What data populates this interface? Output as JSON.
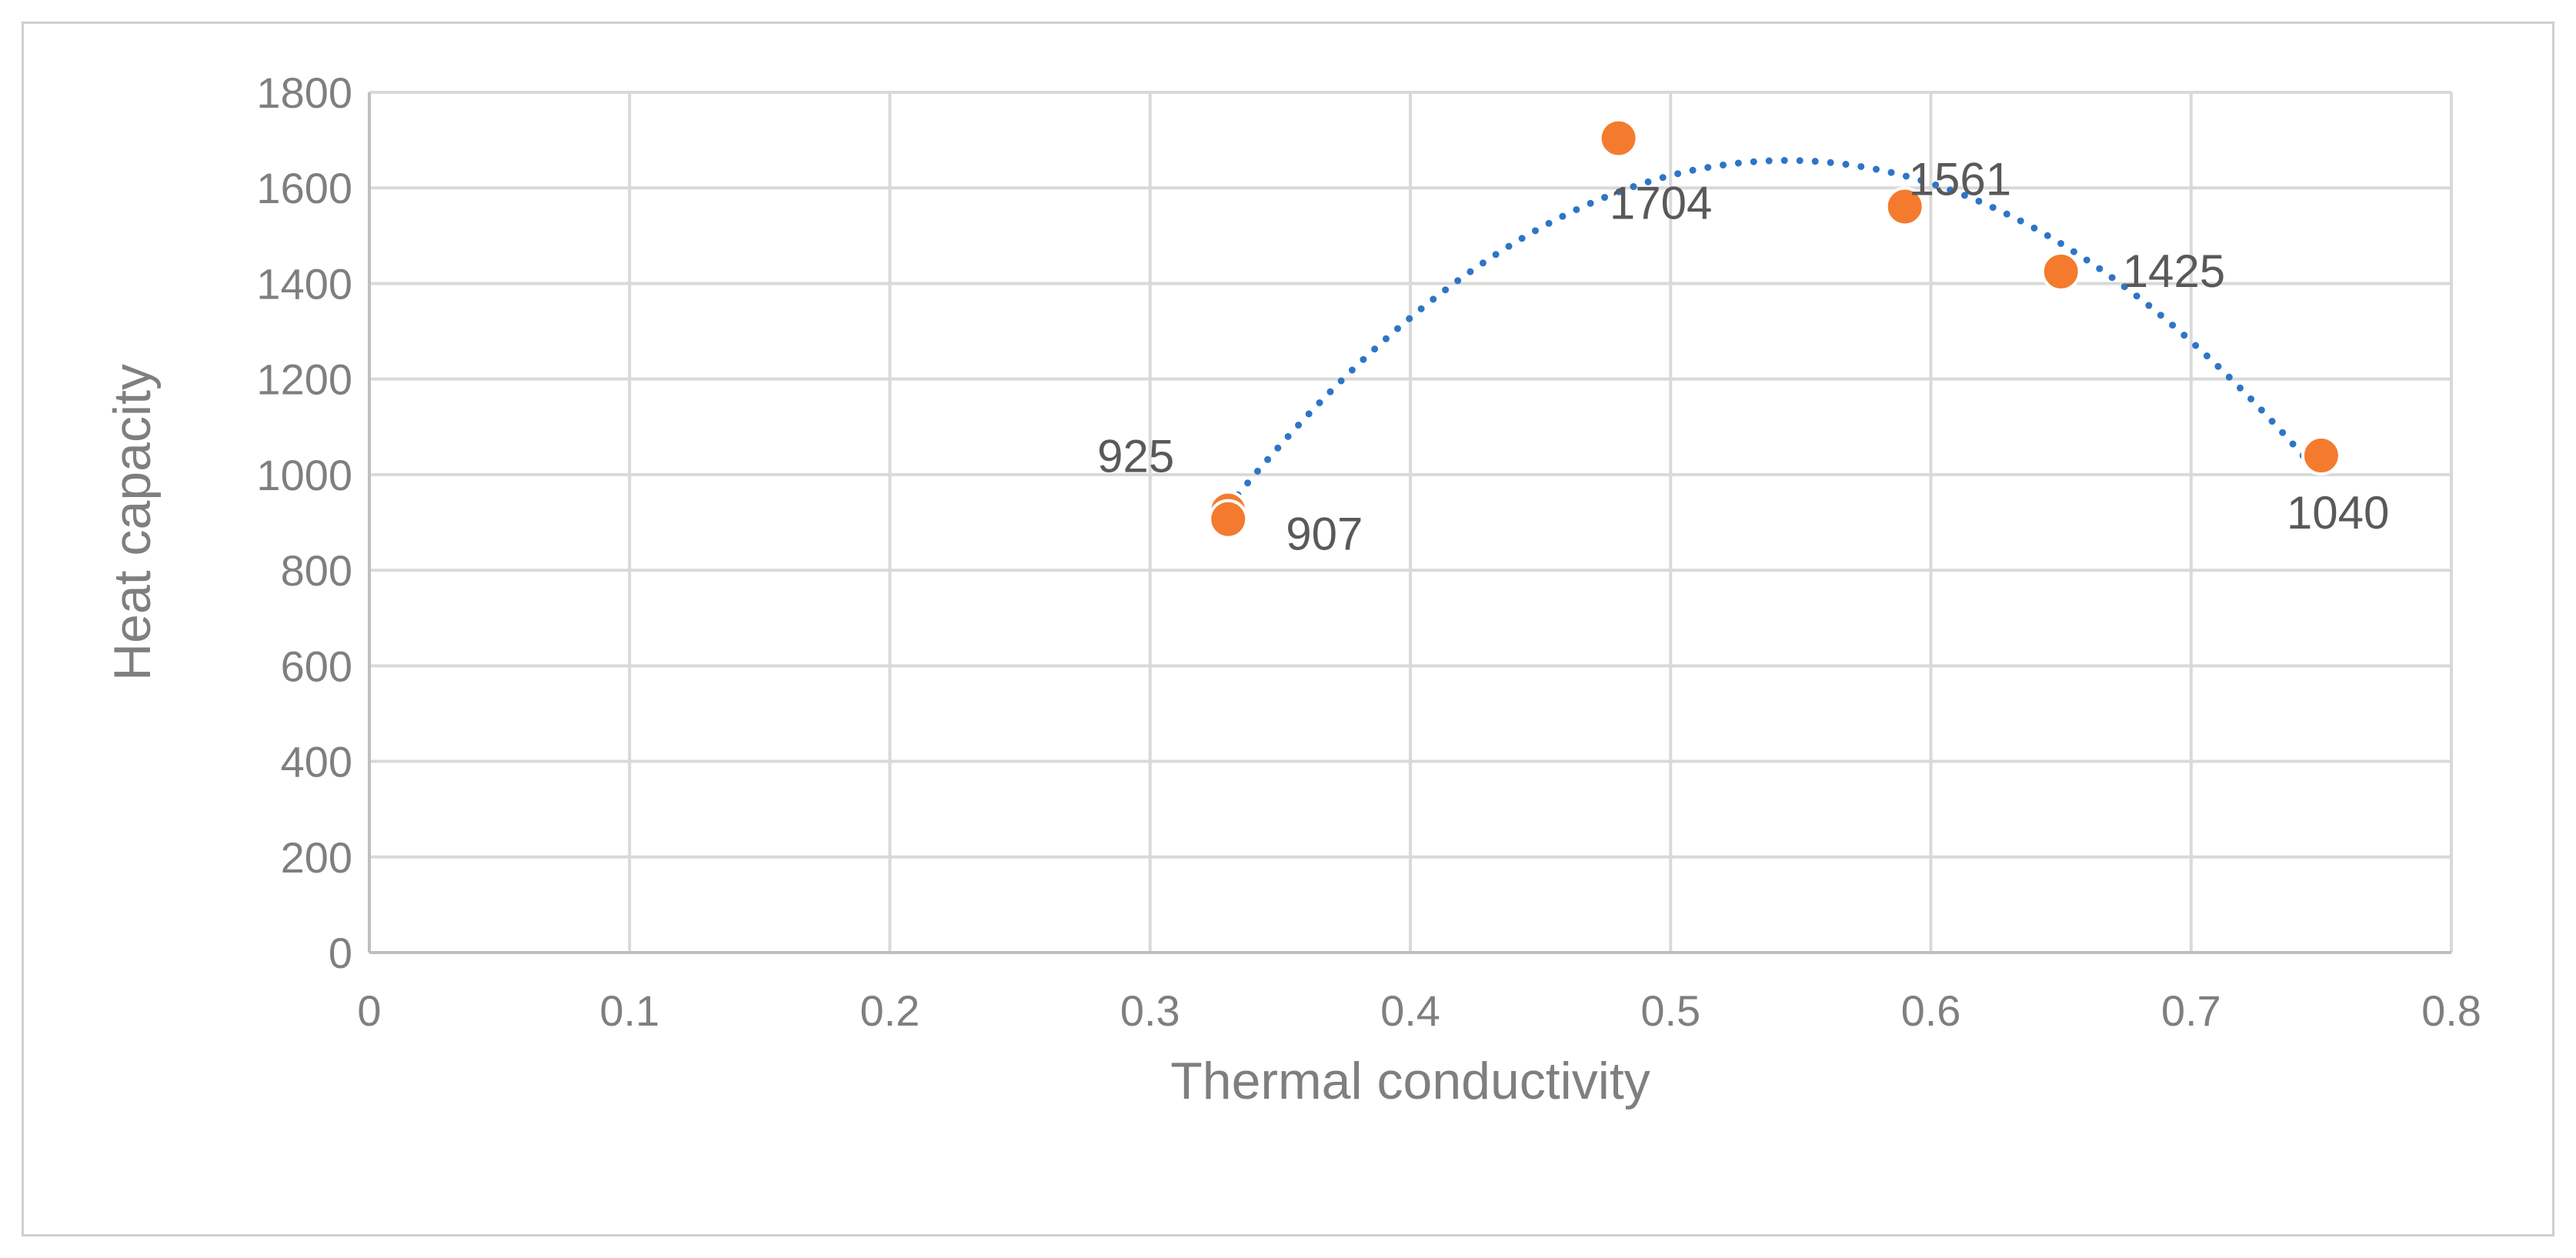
{
  "chart_data": {
    "type": "scatter",
    "title": "",
    "xlabel": "Thermal conductivity",
    "ylabel": "Heat capacity",
    "xlim": [
      0,
      0.8
    ],
    "ylim": [
      0,
      1800
    ],
    "xticks": [
      "0",
      "0.1",
      "0.2",
      "0.3",
      "0.4",
      "0.5",
      "0.6",
      "0.7",
      "0.8"
    ],
    "yticks": [
      "0",
      "200",
      "400",
      "600",
      "800",
      "1000",
      "1200",
      "1400",
      "1600",
      "1800"
    ],
    "grid": true,
    "legend": "none",
    "series": [
      {
        "marker_color": "#f47b2e",
        "points": [
          {
            "x": 0.33,
            "y": 925,
            "label": "925"
          },
          {
            "x": 0.33,
            "y": 907,
            "label": "907"
          },
          {
            "x": 0.48,
            "y": 1704,
            "label": "1704"
          },
          {
            "x": 0.59,
            "y": 1561,
            "label": "1561"
          },
          {
            "x": 0.65,
            "y": 1425,
            "label": "1425"
          },
          {
            "x": 0.75,
            "y": 1040,
            "label": "1040"
          }
        ]
      }
    ],
    "trendline": {
      "type": "polynomial",
      "style": "dotted",
      "color": "#2e75c6"
    }
  }
}
